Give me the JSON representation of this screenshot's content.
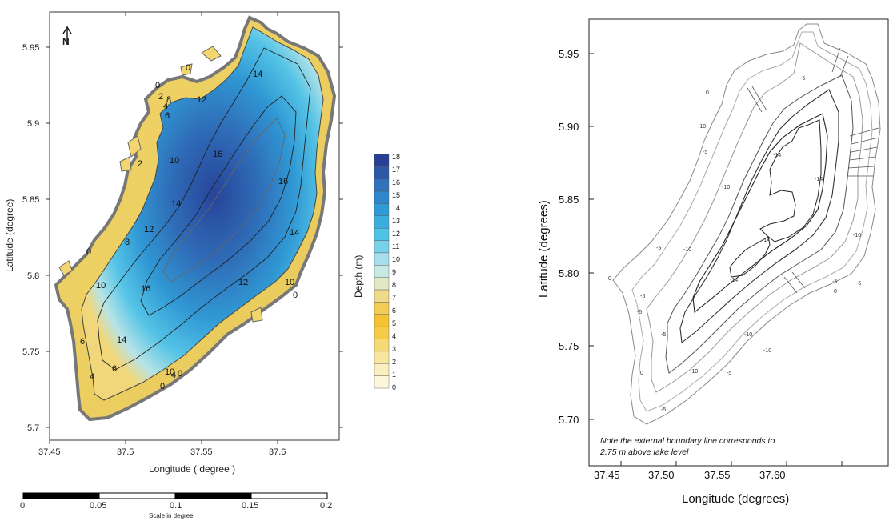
{
  "left_map": {
    "xlabel": "Longitude ( degree )",
    "ylabel": "Latitude (degree)",
    "x_ticks": [
      "37.45",
      "37.5",
      "37.55",
      "37.6"
    ],
    "y_ticks": [
      "5.95",
      "5.9",
      "5.85",
      "5.8",
      "5.75",
      "5.7"
    ],
    "north_label": "N",
    "contour_labels": [
      "0",
      "0",
      "2",
      "4",
      "6",
      "8",
      "10",
      "12",
      "14",
      "14",
      "16",
      "16",
      "16",
      "14",
      "12",
      "10",
      "12",
      "14",
      "10",
      "0",
      "4",
      "6",
      "10",
      "0",
      "0",
      "8",
      "6",
      "4",
      "2",
      "0"
    ],
    "colorbar": {
      "label": "Depth (m)",
      "ticks": [
        "18",
        "17",
        "16",
        "15",
        "14",
        "13",
        "12",
        "11",
        "10",
        "9",
        "8",
        "7",
        "6",
        "5",
        "4",
        "3",
        "2",
        "1",
        "0"
      ],
      "colors": [
        "#283f94",
        "#2d58a8",
        "#3172bd",
        "#2e86cb",
        "#2f9ad6",
        "#3caede",
        "#4fc2e6",
        "#79d0ea",
        "#a6deec",
        "#c8e8e4",
        "#e1e8c4",
        "#efd98a",
        "#f3cc54",
        "#f4c234",
        "#f5cc4a",
        "#f6da78",
        "#f8e69e",
        "#faefbf",
        "#fcf6da"
      ]
    },
    "scale_bar": {
      "ticks": [
        "0",
        "0.05",
        "0.1",
        "0.15",
        "0.2"
      ],
      "caption": "Scale in degree"
    }
  },
  "right_map": {
    "xlabel": "Longitude (degrees)",
    "ylabel": "Latitude (degrees)",
    "x_ticks": [
      "37.45",
      "37.50",
      "37.55",
      "37.60"
    ],
    "y_ticks": [
      "5.95",
      "5.90",
      "5.85",
      "5.80",
      "5.75",
      "5.70"
    ],
    "contour_labels": [
      "0",
      "-5",
      "-10",
      "-14",
      "-14",
      "-14",
      "-14",
      "-10",
      "-10",
      "-5",
      "-5",
      "-10",
      "-10",
      "-5",
      "0",
      "-5",
      "-10",
      "-5",
      "-5",
      "0",
      "-5",
      "-10",
      "-5",
      "-5",
      "0"
    ],
    "note_line1": "Note the external boundary line corresponds to",
    "note_line2": "2.75 m above lake level"
  }
}
